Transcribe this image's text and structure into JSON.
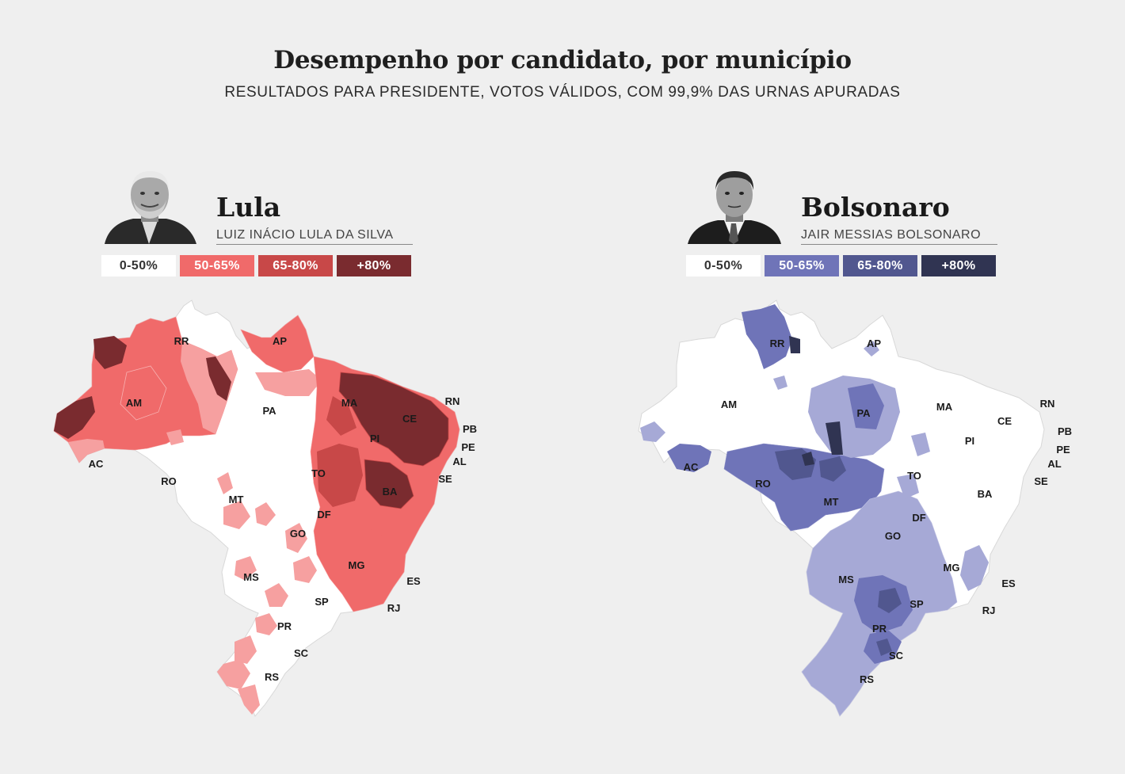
{
  "header": {
    "title": "Desempenho por candidato, por município",
    "subtitle": "RESULTADOS PARA PRESIDENTE, VOTOS VÁLIDOS, COM 99,9% DAS URNAS APURADAS"
  },
  "legend_labels": [
    "0-50%",
    "50-65%",
    "65-80%",
    "+80%"
  ],
  "candidates": [
    {
      "name": "Lula",
      "full_name": "LUIZ INÁCIO LULA DA SILVA",
      "colors": [
        "#ffffff",
        "#f06a6a",
        "#c84848",
        "#7a2b2f"
      ]
    },
    {
      "name": "Bolsonaro",
      "full_name": "JAIR MESSIAS BOLSONARO",
      "colors": [
        "#ffffff",
        "#6f74b8",
        "#51578f",
        "#303452"
      ]
    }
  ],
  "states": [
    "RR",
    "AP",
    "AM",
    "PA",
    "MA",
    "CE",
    "RN",
    "PB",
    "PE",
    "AL",
    "SE",
    "PI",
    "AC",
    "RO",
    "TO",
    "BA",
    "MT",
    "DF",
    "GO",
    "MG",
    "ES",
    "MS",
    "SP",
    "RJ",
    "PR",
    "SC",
    "RS"
  ]
}
